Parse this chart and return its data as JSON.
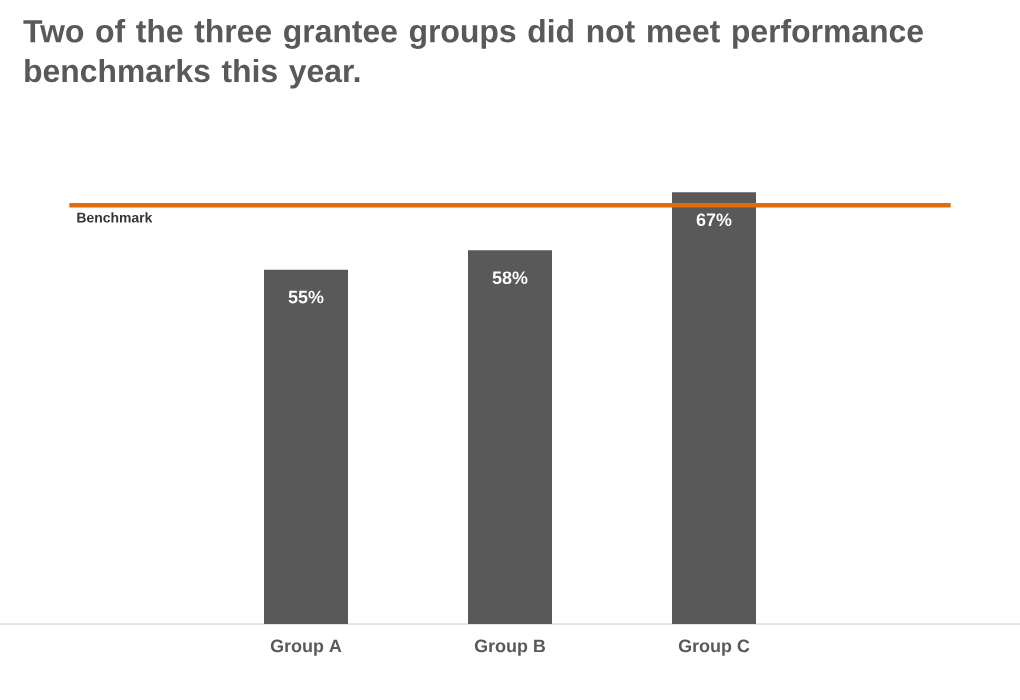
{
  "chart_data": {
    "type": "bar",
    "title": "Two of the three grantee groups did not meet performance **benchmarks** this year.",
    "categories": [
      "Group A",
      "Group B",
      "Group C"
    ],
    "values": [
      55,
      58,
      67
    ],
    "value_labels": [
      "55%",
      "58%",
      "67%"
    ],
    "color": "#595959",
    "tick_labels": "x",
    "ref_lines": [
      {
        "axis": "y",
        "value": 65,
        "label": "Benchmark",
        "color": "#e36c0a"
      }
    ]
  }
}
